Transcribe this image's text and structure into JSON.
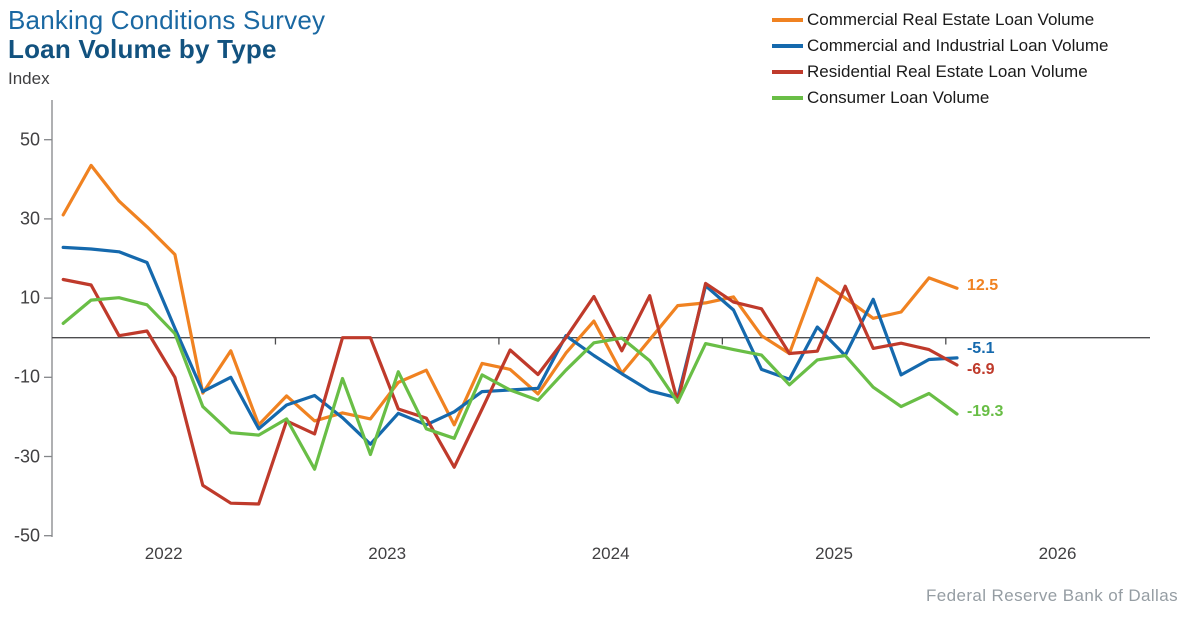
{
  "footer": {
    "source": "Federal Reserve Bank of Dallas"
  },
  "chart_data": {
    "type": "line",
    "title": "Banking Conditions Survey",
    "subtitle": "Loan Volume by Type",
    "ylabel": "Index",
    "legend_position": "top-right",
    "grid": false,
    "zero_line": true,
    "y_axis": {
      "ticks": [
        50,
        30,
        10,
        -10,
        -30,
        -50
      ],
      "min": -50,
      "max": 57
    },
    "x_axis": {
      "labels": [
        "2022",
        "2023",
        "2024",
        "2025",
        "2026"
      ],
      "start_year": 2022,
      "end_year": 2026.5
    },
    "x_years": [
      2022.05,
      2022.175,
      2022.3,
      2022.425,
      2022.55,
      2022.675,
      2022.8,
      2022.925,
      2023.05,
      2023.175,
      2023.3,
      2023.425,
      2023.55,
      2023.675,
      2023.8,
      2023.925,
      2024.05,
      2024.175,
      2024.3,
      2024.425,
      2024.55,
      2024.675,
      2024.8,
      2024.925,
      2025.05,
      2025.175,
      2025.3,
      2025.425,
      2025.55,
      2025.675,
      2025.8,
      2025.925,
      2026.05
    ],
    "series": [
      {
        "name": "Commercial Real Estate Loan Volume",
        "color": "#F08221",
        "end_label": "12.5",
        "values": [
          31,
          43.5,
          34.5,
          28,
          21,
          -14,
          -3.3,
          -22,
          -14.7,
          -21,
          -19,
          -20.5,
          -11.3,
          -8.2,
          -22,
          -6.5,
          -8,
          -14.2,
          -3.9,
          4.2,
          -9,
          -0.5,
          8.1,
          8.8,
          10.3,
          0.5,
          -4,
          15,
          10,
          4.9,
          6.5,
          15.1,
          12.5
        ]
      },
      {
        "name": "Commercial and Industrial Loan Volume",
        "color": "#1569AD",
        "end_label": "-5.1",
        "values": [
          22.8,
          22.4,
          21.7,
          19,
          2.4,
          -13.6,
          -10,
          -23,
          -17,
          -14.6,
          -20.2,
          -26.9,
          -19.1,
          -22,
          -18.7,
          -13.6,
          -13.2,
          -12.8,
          0.5,
          -4.5,
          -9.1,
          -13.4,
          -15.2,
          13.1,
          7,
          -8,
          -10.5,
          2.7,
          -4.5,
          9.7,
          -9.4,
          -5.5,
          -5.1
        ]
      },
      {
        "name": "Residential Real Estate Loan Volume",
        "color": "#BF3A2B",
        "end_label": "-6.9",
        "values": [
          14.7,
          13.3,
          0.5,
          1.7,
          -10,
          -37.3,
          -41.8,
          -42,
          -21,
          -24.3,
          0,
          0,
          -18,
          -20.3,
          -32.7,
          -18,
          -3.1,
          -9.3,
          0,
          10.4,
          -3.3,
          10.6,
          -16.3,
          13.7,
          9,
          7.3,
          -4,
          -3.4,
          13,
          -2.7,
          -1.4,
          -3,
          -6.9
        ]
      },
      {
        "name": "Consumer Loan Volume",
        "color": "#69BE46",
        "end_label": "-19.3",
        "values": [
          3.6,
          9.5,
          10.1,
          8.3,
          1,
          -17.4,
          -24,
          -24.6,
          -20.5,
          -33.2,
          -10.3,
          -29.5,
          -8.6,
          -23,
          -25.4,
          -9.4,
          -13.2,
          -15.8,
          -8.2,
          -1.3,
          -0.1,
          -5.8,
          -16.3,
          -1.5,
          -3,
          -4.4,
          -11.9,
          -5.6,
          -4.5,
          -12.5,
          -17.4,
          -14.1,
          -19.3
        ]
      }
    ]
  }
}
